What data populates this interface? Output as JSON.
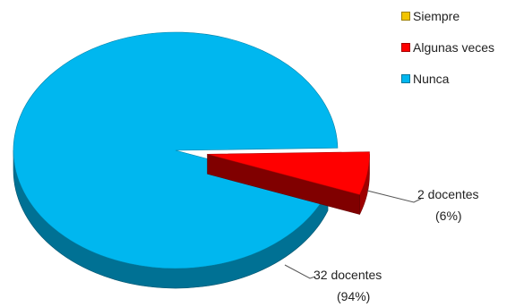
{
  "chart_data": {
    "type": "pie",
    "title": "",
    "legend_position": "top-right",
    "series": [
      {
        "values": [
          0,
          2,
          32
        ]
      }
    ],
    "categories": [
      "Siempre",
      "Algunas veces",
      "Nunca"
    ],
    "values": [
      0,
      2,
      32
    ],
    "colors": {
      "Siempre": "#F2C400",
      "Algunas veces": "#FF0000",
      "Nunca": "#00B7EF"
    },
    "data_labels": {
      "Algunas veces": {
        "count": "2 docentes",
        "percent": "(6%)"
      },
      "Nunca": {
        "count": "32 docentes",
        "percent": "(94%)"
      }
    },
    "legend": [
      {
        "label": "Siempre",
        "color": "#F2C400"
      },
      {
        "label": "Algunas veces",
        "color": "#FF0000"
      },
      {
        "label": "Nunca",
        "color": "#00B7EF"
      }
    ]
  }
}
